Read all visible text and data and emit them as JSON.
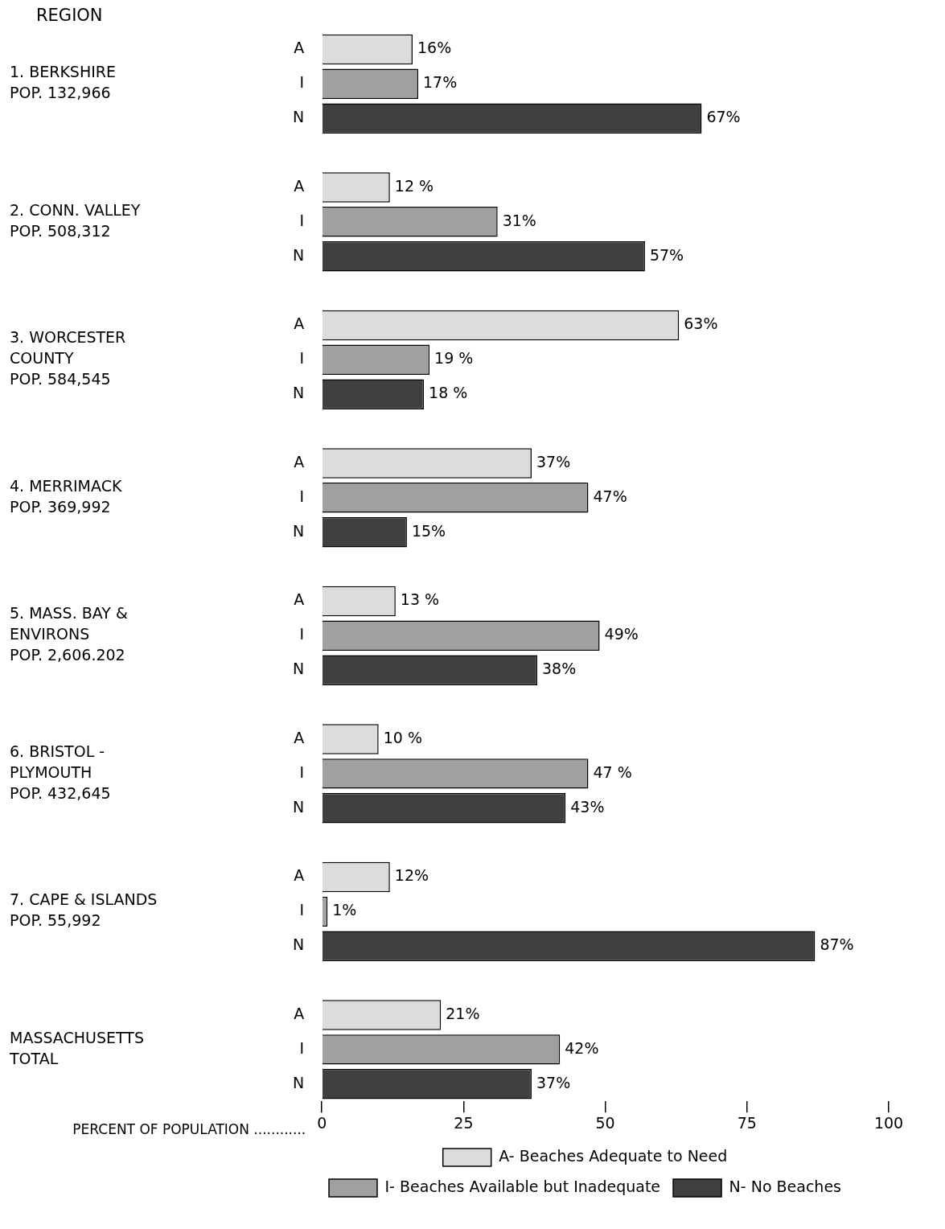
{
  "chart_data": {
    "type": "bar",
    "orientation": "horizontal",
    "title": "REGION",
    "xlabel": "PERCENT OF POPULATION ............",
    "categories": [
      "A",
      "I",
      "N",
      null,
      "A",
      "I",
      "N",
      null,
      "A",
      "I",
      "N",
      null,
      "A",
      "I",
      "N",
      null,
      "A",
      "I",
      "N",
      null,
      "A",
      "I",
      "N",
      null,
      "A",
      "I",
      "N",
      null,
      "A",
      "I",
      "N"
    ],
    "annotations": [
      "1. BERKSHIRE\nPOP. 132,966",
      "2. CONN. VALLEY\nPOP. 508,312",
      "3. WORCESTER\nCOUNTY\nPOP. 584,545",
      "4. MERRIMACK\nPOP. 369,992",
      "5. MASS. BAY &\nENVIRONS\nPOP. 2,606.202",
      "6. BRISTOL -\nPLYMOUTH\nPOP. 432,645",
      "7. CAPE & ISLANDS\nPOP. 55,992",
      "MASSACHUSETTS\nTOTAL"
    ],
    "series": [
      {
        "name": "A- Beaches Adequate to Need",
        "color": "#dcdcdc",
        "values": [
          16,
          null,
          null,
          null,
          12,
          null,
          null,
          null,
          63,
          null,
          null,
          null,
          37,
          null,
          null,
          null,
          13,
          null,
          null,
          null,
          10,
          null,
          null,
          null,
          12,
          null,
          null,
          null,
          21,
          null,
          null
        ],
        "value_labels": [
          "16%",
          null,
          null,
          null,
          "12 %",
          null,
          null,
          null,
          "63%",
          null,
          null,
          null,
          "37%",
          null,
          null,
          null,
          "13 %",
          null,
          null,
          null,
          "10 %",
          null,
          null,
          null,
          "12%",
          null,
          null,
          null,
          "21%",
          null,
          null
        ]
      },
      {
        "name": "I- Beaches Available but Inadequate",
        "color": "#a0a0a0",
        "values": [
          null,
          17,
          null,
          null,
          null,
          31,
          null,
          null,
          null,
          19,
          null,
          null,
          null,
          47,
          null,
          null,
          null,
          49,
          null,
          null,
          null,
          47,
          null,
          null,
          null,
          1,
          null,
          null,
          null,
          42,
          null
        ],
        "value_labels": [
          null,
          "17%",
          null,
          null,
          null,
          "31%",
          null,
          null,
          null,
          "19 %",
          null,
          null,
          null,
          "47%",
          null,
          null,
          null,
          "49%",
          null,
          null,
          null,
          "47 %",
          null,
          null,
          null,
          "1%",
          null,
          null,
          null,
          "42%",
          null
        ]
      },
      {
        "name": "N- No Beaches",
        "color": "#404040",
        "values": [
          null,
          null,
          67,
          null,
          null,
          null,
          57,
          null,
          null,
          null,
          18,
          null,
          null,
          null,
          15,
          null,
          null,
          null,
          38,
          null,
          null,
          null,
          43,
          null,
          null,
          null,
          87,
          null,
          null,
          null,
          37
        ],
        "value_labels": [
          null,
          null,
          "67%",
          null,
          null,
          null,
          "57%",
          null,
          null,
          null,
          "18 %",
          null,
          null,
          null,
          "15%",
          null,
          null,
          null,
          "38%",
          null,
          null,
          null,
          "43%",
          null,
          null,
          null,
          "87%",
          null,
          null,
          null,
          "37%"
        ]
      }
    ],
    "xlim": [
      0,
      100
    ],
    "xticks": [
      0,
      25,
      50,
      75,
      100
    ],
    "grid": false,
    "legend": "bottom"
  }
}
